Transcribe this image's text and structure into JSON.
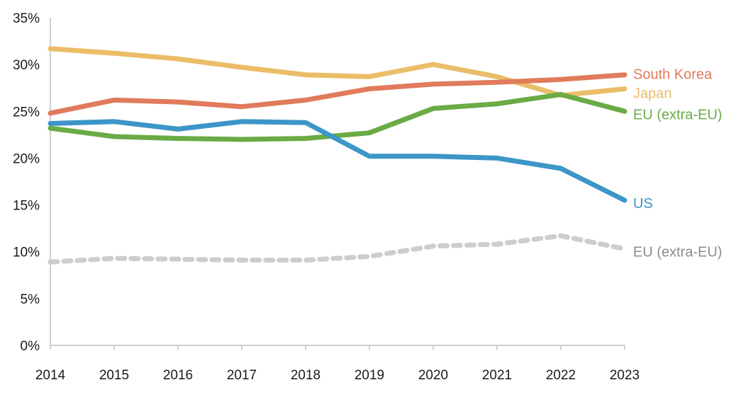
{
  "chart_data": {
    "type": "line",
    "title": "",
    "xlabel": "",
    "ylabel": "",
    "grid": false,
    "x": [
      "2014",
      "2015",
      "2016",
      "2017",
      "2018",
      "2019",
      "2020",
      "2021",
      "2022",
      "2023"
    ],
    "ylim": [
      0,
      35
    ],
    "yticks": [
      {
        "value": 0,
        "label": "0%"
      },
      {
        "value": 5,
        "label": "5%"
      },
      {
        "value": 10,
        "label": "10%"
      },
      {
        "value": 15,
        "label": "15%"
      },
      {
        "value": 20,
        "label": "20%"
      },
      {
        "value": 25,
        "label": "25%"
      },
      {
        "value": 30,
        "label": "30%"
      },
      {
        "value": 35,
        "label": "35%"
      }
    ],
    "series": [
      {
        "name": "Japan",
        "label": "Japan",
        "color": "#ebbd68",
        "dashed": false,
        "values": [
          31.7,
          31.2,
          30.6,
          29.7,
          28.9,
          28.7,
          30.0,
          28.7,
          26.7,
          27.4
        ]
      },
      {
        "name": "South Korea",
        "label": "South Korea",
        "color": "#e07b5b",
        "dashed": false,
        "values": [
          24.8,
          26.2,
          26.0,
          25.5,
          26.2,
          27.4,
          27.9,
          28.1,
          28.4,
          28.9
        ]
      },
      {
        "name": "EU (extra-EU)",
        "label": "EU (extra-EU)",
        "color": "#6aab45",
        "dashed": false,
        "values": [
          23.2,
          22.3,
          22.1,
          22.0,
          22.1,
          22.7,
          25.3,
          25.8,
          26.8,
          25.0
        ]
      },
      {
        "name": "US",
        "label": "US",
        "color": "#3c96c8",
        "dashed": false,
        "values": [
          23.7,
          23.9,
          23.1,
          23.9,
          23.8,
          20.2,
          20.2,
          20.0,
          18.9,
          15.5
        ]
      },
      {
        "name": "EU (extra-EU) dashed",
        "label": "EU (extra-EU)",
        "color": "#cdcdcd",
        "label_color": "#8c8c8c",
        "dashed": true,
        "values": [
          8.9,
          9.3,
          9.2,
          9.1,
          9.1,
          9.5,
          10.6,
          10.8,
          11.7,
          10.3
        ]
      }
    ]
  }
}
